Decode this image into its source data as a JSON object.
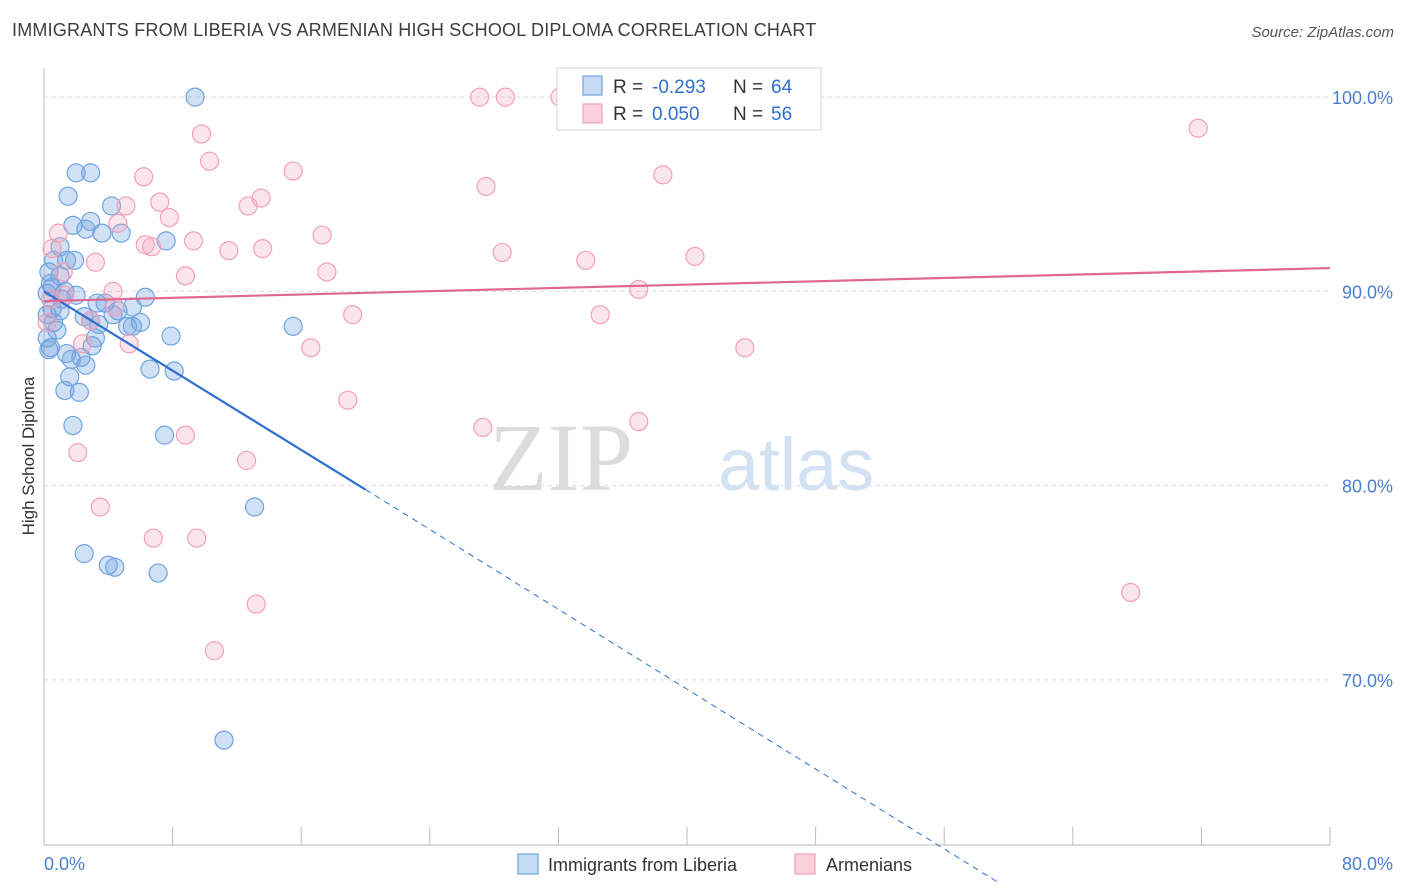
{
  "chart_data": {
    "type": "scatter",
    "title": "IMMIGRANTS FROM LIBERIA VS ARMENIAN HIGH SCHOOL DIPLOMA CORRELATION CHART",
    "source": "Source: ZipAtlas.com",
    "ylabel": "High School Diploma",
    "xlabel": "",
    "xlim": [
      0,
      80
    ],
    "ylim": [
      61.5,
      101.5
    ],
    "x_tick_labels": [
      "0.0%",
      "80.0%"
    ],
    "y_ticks": [
      70,
      80,
      90,
      100
    ],
    "y_tick_labels": [
      "70.0%",
      "80.0%",
      "90.0%",
      "100.0%"
    ],
    "watermark": {
      "part1": "ZIP",
      "part2": "atlas"
    },
    "legend": [
      {
        "r_label": "R =",
        "r_value": "-0.293",
        "n_label": "N =",
        "n_value": "64"
      },
      {
        "r_label": "R =",
        "r_value": "0.050",
        "n_label": "N =",
        "n_value": "56"
      }
    ],
    "series": [
      {
        "name": "Immigrants from Liberia",
        "color": "#6fa3e0",
        "line_color": "#2f6fcf",
        "trend": {
          "x0": 0.0,
          "y0": 90.0,
          "x1": 20.0,
          "y1": 79.8,
          "dash_x1": 59.5,
          "dash_y1": 59.5
        },
        "points": [
          [
            9.4,
            100.0
          ],
          [
            2.0,
            96.1
          ],
          [
            2.9,
            96.1
          ],
          [
            1.5,
            94.9
          ],
          [
            4.2,
            94.4
          ],
          [
            2.9,
            93.6
          ],
          [
            1.8,
            93.4
          ],
          [
            2.6,
            93.2
          ],
          [
            3.6,
            93.0
          ],
          [
            4.8,
            93.0
          ],
          [
            7.6,
            92.6
          ],
          [
            1.0,
            92.3
          ],
          [
            0.6,
            91.6
          ],
          [
            1.4,
            91.6
          ],
          [
            1.9,
            91.6
          ],
          [
            0.3,
            91.0
          ],
          [
            1.0,
            90.8
          ],
          [
            0.5,
            90.2
          ],
          [
            0.2,
            89.9
          ],
          [
            1.3,
            90.0
          ],
          [
            6.3,
            89.7
          ],
          [
            1.1,
            89.6
          ],
          [
            3.3,
            89.4
          ],
          [
            3.8,
            89.4
          ],
          [
            5.5,
            89.2
          ],
          [
            0.5,
            89.1
          ],
          [
            0.2,
            88.8
          ],
          [
            2.5,
            88.7
          ],
          [
            2.9,
            88.5
          ],
          [
            4.3,
            88.8
          ],
          [
            3.4,
            88.3
          ],
          [
            5.2,
            88.2
          ],
          [
            5.5,
            88.2
          ],
          [
            15.5,
            88.2
          ],
          [
            0.8,
            88.0
          ],
          [
            0.2,
            87.6
          ],
          [
            7.9,
            87.7
          ],
          [
            3.2,
            87.6
          ],
          [
            0.4,
            87.1
          ],
          [
            0.3,
            87.0
          ],
          [
            1.4,
            86.8
          ],
          [
            1.7,
            86.5
          ],
          [
            2.3,
            86.6
          ],
          [
            2.6,
            86.2
          ],
          [
            6.6,
            86.0
          ],
          [
            8.1,
            85.9
          ],
          [
            1.6,
            85.6
          ],
          [
            1.3,
            84.9
          ],
          [
            2.2,
            84.8
          ],
          [
            1.8,
            83.1
          ],
          [
            7.5,
            82.6
          ],
          [
            13.1,
            78.9
          ],
          [
            2.5,
            76.5
          ],
          [
            4.0,
            75.9
          ],
          [
            4.4,
            75.8
          ],
          [
            7.1,
            75.5
          ],
          [
            11.2,
            66.9
          ],
          [
            0.4,
            90.4
          ],
          [
            1.0,
            89.0
          ],
          [
            2.0,
            89.8
          ],
          [
            4.6,
            89.0
          ],
          [
            0.6,
            88.4
          ],
          [
            3.0,
            87.2
          ],
          [
            6.0,
            88.4
          ]
        ]
      },
      {
        "name": "Armenians",
        "color": "#f2a0b9",
        "line_color": "#e06890",
        "trend": {
          "x0": 0.0,
          "y0": 89.5,
          "x1": 80.0,
          "y1": 91.2
        },
        "points": [
          [
            27.1,
            100.0
          ],
          [
            28.7,
            100.0
          ],
          [
            32.1,
            100.0
          ],
          [
            71.8,
            98.4
          ],
          [
            9.8,
            98.1
          ],
          [
            10.3,
            96.7
          ],
          [
            15.5,
            96.2
          ],
          [
            6.2,
            95.9
          ],
          [
            38.5,
            96.0
          ],
          [
            27.5,
            95.4
          ],
          [
            13.5,
            94.8
          ],
          [
            7.2,
            94.6
          ],
          [
            12.7,
            94.4
          ],
          [
            5.1,
            94.4
          ],
          [
            7.8,
            93.8
          ],
          [
            4.6,
            93.5
          ],
          [
            0.9,
            93.0
          ],
          [
            17.3,
            92.9
          ],
          [
            9.3,
            92.6
          ],
          [
            6.3,
            92.4
          ],
          [
            6.7,
            92.3
          ],
          [
            11.5,
            92.1
          ],
          [
            13.6,
            92.2
          ],
          [
            0.5,
            92.2
          ],
          [
            28.5,
            92.0
          ],
          [
            40.5,
            91.8
          ],
          [
            33.7,
            91.6
          ],
          [
            3.2,
            91.5
          ],
          [
            1.2,
            91.0
          ],
          [
            17.6,
            91.0
          ],
          [
            8.8,
            90.8
          ],
          [
            37.0,
            90.1
          ],
          [
            4.3,
            90.0
          ],
          [
            1.3,
            89.8
          ],
          [
            0.4,
            89.6
          ],
          [
            34.6,
            88.8
          ],
          [
            19.2,
            88.8
          ],
          [
            4.4,
            89.2
          ],
          [
            2.9,
            88.5
          ],
          [
            0.2,
            88.4
          ],
          [
            5.3,
            87.3
          ],
          [
            2.4,
            87.3
          ],
          [
            16.6,
            87.1
          ],
          [
            43.6,
            87.1
          ],
          [
            18.9,
            84.4
          ],
          [
            37.0,
            83.3
          ],
          [
            27.3,
            83.0
          ],
          [
            8.8,
            82.6
          ],
          [
            2.1,
            81.7
          ],
          [
            12.6,
            81.3
          ],
          [
            3.5,
            78.9
          ],
          [
            6.8,
            77.3
          ],
          [
            9.5,
            77.3
          ],
          [
            13.2,
            73.9
          ],
          [
            67.6,
            74.5
          ],
          [
            10.6,
            71.5
          ]
        ]
      }
    ]
  }
}
